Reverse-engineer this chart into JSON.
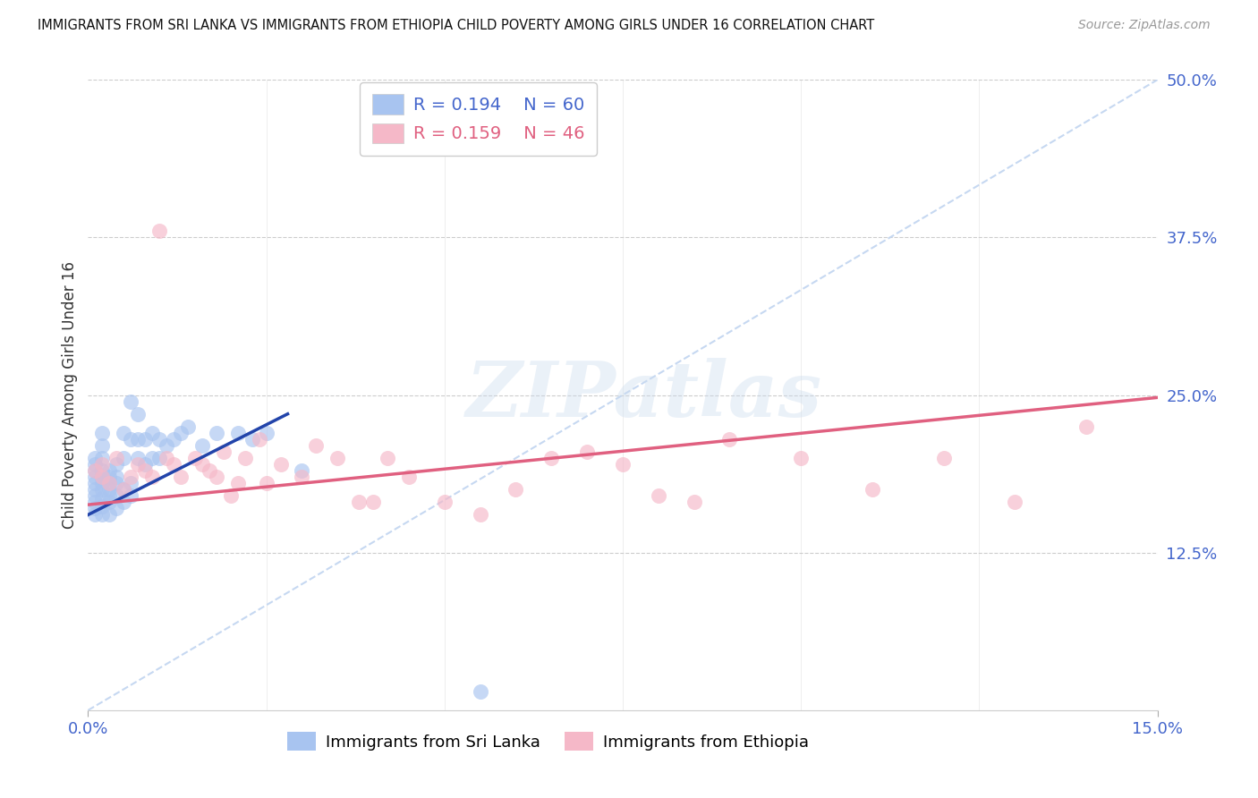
{
  "title": "IMMIGRANTS FROM SRI LANKA VS IMMIGRANTS FROM ETHIOPIA CHILD POVERTY AMONG GIRLS UNDER 16 CORRELATION CHART",
  "source": "Source: ZipAtlas.com",
  "ylabel": "Child Poverty Among Girls Under 16",
  "xlim": [
    0.0,
    0.15
  ],
  "ylim": [
    0.0,
    0.5
  ],
  "color_sri_lanka": "#a8c4f0",
  "color_ethiopia": "#f5b8c8",
  "color_trend_sri_lanka": "#2244aa",
  "color_trend_ethiopia": "#e06080",
  "color_diagonal": "#c0d4f0",
  "color_axis": "#4466cc",
  "r_sri_lanka": 0.194,
  "n_sri_lanka": 60,
  "r_ethiopia": 0.159,
  "n_ethiopia": 46,
  "watermark": "ZIPatlas",
  "sl_trend_x": [
    0.0,
    0.028
  ],
  "sl_trend_y": [
    0.155,
    0.235
  ],
  "eth_trend_x": [
    0.0,
    0.15
  ],
  "eth_trend_y": [
    0.163,
    0.248
  ],
  "sl_x": [
    0.001,
    0.001,
    0.001,
    0.001,
    0.001,
    0.001,
    0.001,
    0.001,
    0.001,
    0.001,
    0.002,
    0.002,
    0.002,
    0.002,
    0.002,
    0.002,
    0.002,
    0.002,
    0.002,
    0.002,
    0.003,
    0.003,
    0.003,
    0.003,
    0.003,
    0.003,
    0.003,
    0.004,
    0.004,
    0.004,
    0.004,
    0.004,
    0.005,
    0.005,
    0.005,
    0.005,
    0.006,
    0.006,
    0.006,
    0.006,
    0.007,
    0.007,
    0.007,
    0.008,
    0.008,
    0.009,
    0.009,
    0.01,
    0.01,
    0.011,
    0.012,
    0.013,
    0.014,
    0.016,
    0.018,
    0.021,
    0.023,
    0.025,
    0.03,
    0.055
  ],
  "sl_y": [
    0.155,
    0.16,
    0.165,
    0.17,
    0.175,
    0.18,
    0.185,
    0.19,
    0.195,
    0.2,
    0.155,
    0.162,
    0.168,
    0.175,
    0.18,
    0.185,
    0.19,
    0.2,
    0.21,
    0.22,
    0.155,
    0.165,
    0.17,
    0.175,
    0.18,
    0.185,
    0.19,
    0.16,
    0.17,
    0.18,
    0.185,
    0.195,
    0.165,
    0.175,
    0.2,
    0.22,
    0.17,
    0.18,
    0.215,
    0.245,
    0.2,
    0.215,
    0.235,
    0.195,
    0.215,
    0.2,
    0.22,
    0.2,
    0.215,
    0.21,
    0.215,
    0.22,
    0.225,
    0.21,
    0.22,
    0.22,
    0.215,
    0.22,
    0.19,
    0.015
  ],
  "eth_x": [
    0.001,
    0.002,
    0.002,
    0.003,
    0.004,
    0.005,
    0.006,
    0.007,
    0.008,
    0.009,
    0.01,
    0.011,
    0.012,
    0.013,
    0.015,
    0.016,
    0.017,
    0.018,
    0.019,
    0.02,
    0.021,
    0.022,
    0.024,
    0.025,
    0.027,
    0.03,
    0.032,
    0.035,
    0.038,
    0.04,
    0.042,
    0.045,
    0.05,
    0.055,
    0.06,
    0.065,
    0.07,
    0.075,
    0.08,
    0.085,
    0.09,
    0.1,
    0.11,
    0.12,
    0.13,
    0.14
  ],
  "eth_y": [
    0.19,
    0.185,
    0.195,
    0.18,
    0.2,
    0.175,
    0.185,
    0.195,
    0.19,
    0.185,
    0.38,
    0.2,
    0.195,
    0.185,
    0.2,
    0.195,
    0.19,
    0.185,
    0.205,
    0.17,
    0.18,
    0.2,
    0.215,
    0.18,
    0.195,
    0.185,
    0.21,
    0.2,
    0.165,
    0.165,
    0.2,
    0.185,
    0.165,
    0.155,
    0.175,
    0.2,
    0.205,
    0.195,
    0.17,
    0.165,
    0.215,
    0.2,
    0.175,
    0.2,
    0.165,
    0.225
  ]
}
